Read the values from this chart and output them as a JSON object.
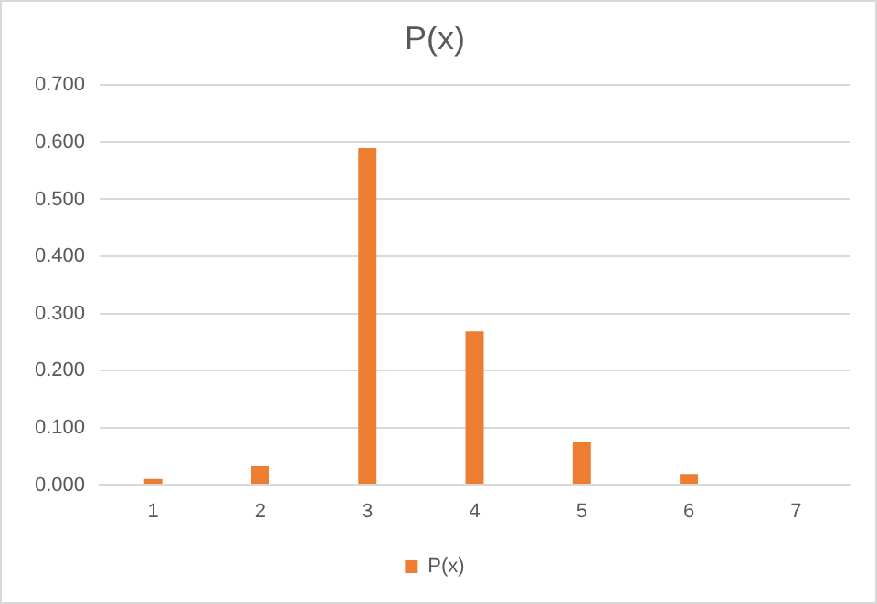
{
  "chart_data": {
    "type": "bar",
    "title": "P(x)",
    "categories": [
      "1",
      "2",
      "3",
      "4",
      "5",
      "6",
      "7"
    ],
    "series": [
      {
        "name": "P(x)",
        "color": "#ed7d31",
        "values": [
          0.011,
          0.033,
          0.59,
          0.269,
          0.076,
          0.018,
          0
        ]
      }
    ],
    "ylim": [
      0,
      0.7
    ],
    "yticks": [
      {
        "value": 0,
        "label": "0.000"
      },
      {
        "value": 0.1,
        "label": "0.100"
      },
      {
        "value": 0.2,
        "label": "0.200"
      },
      {
        "value": 0.3,
        "label": "0.300"
      },
      {
        "value": 0.4,
        "label": "0.400"
      },
      {
        "value": 0.5,
        "label": "0.500"
      },
      {
        "value": 0.6,
        "label": "0.600"
      },
      {
        "value": 0.7,
        "label": "0.700"
      }
    ],
    "grid": "y",
    "legend": "bottom"
  }
}
